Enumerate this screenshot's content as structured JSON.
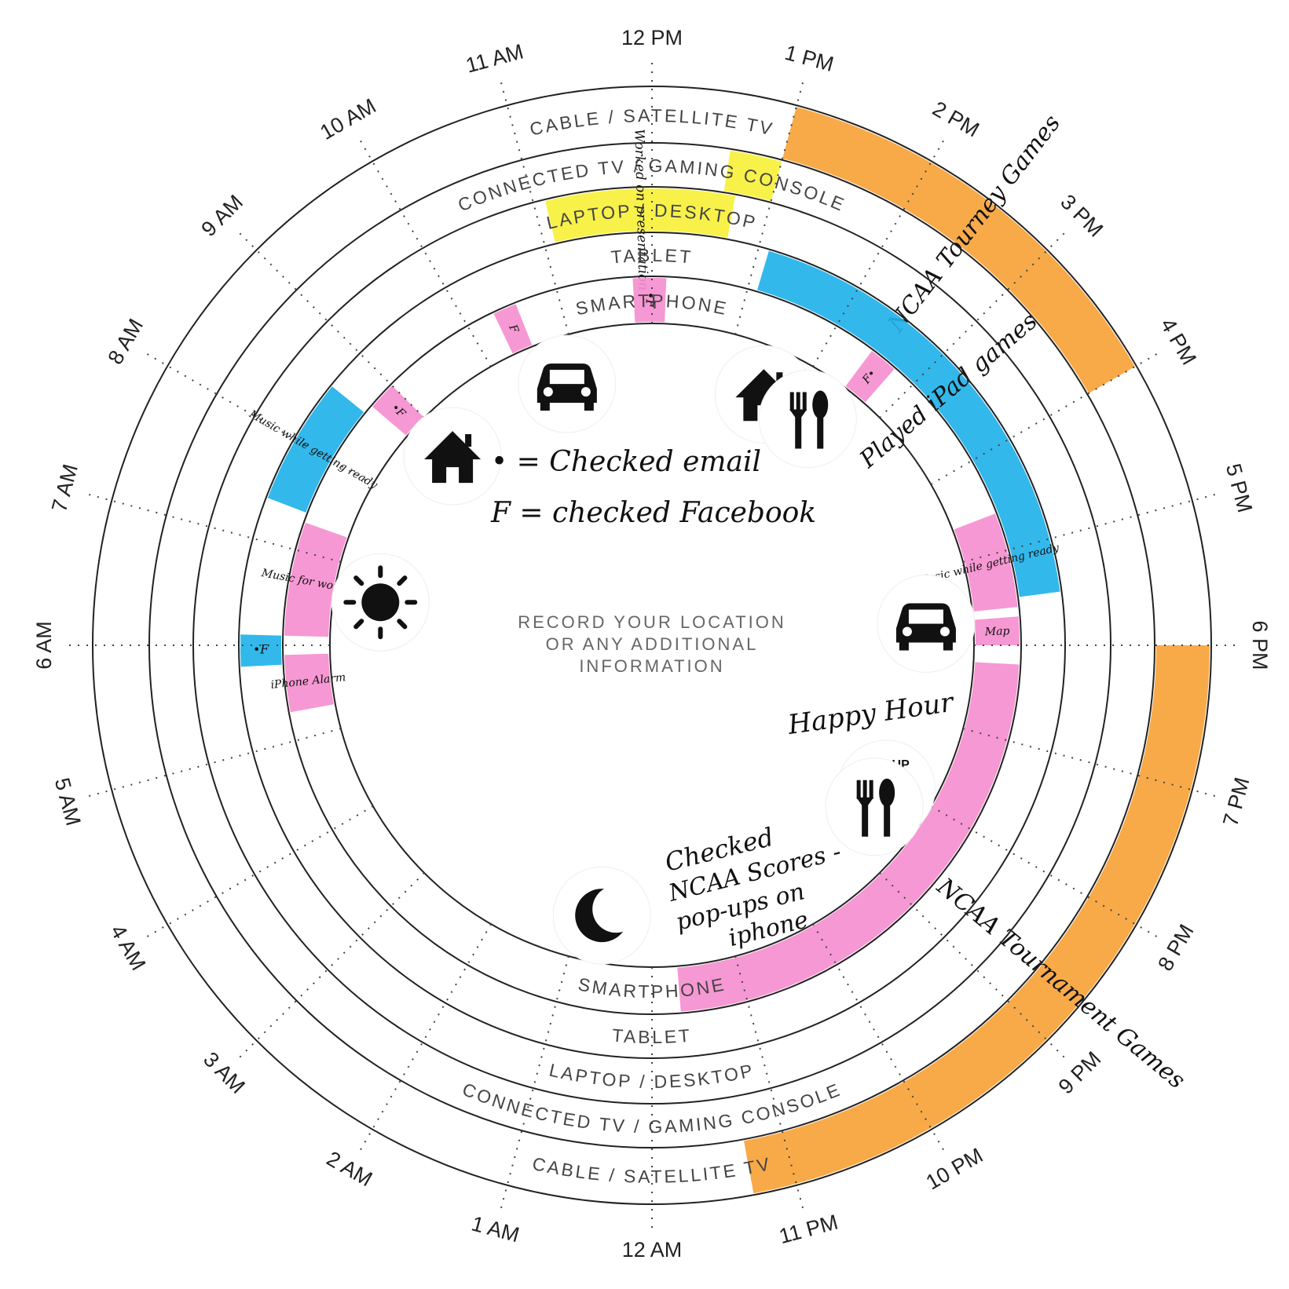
{
  "colors": {
    "orange": "#f7a33a",
    "yellow": "#f6f03b",
    "blue": "#22b2ea",
    "pink": "#f58fcf",
    "ink": "#111111"
  },
  "hour_labels": [
    "12 AM",
    "1 AM",
    "2 AM",
    "3 AM",
    "4 AM",
    "5 AM",
    "6 AM",
    "7 AM",
    "8 AM",
    "9 AM",
    "10 AM",
    "11 AM",
    "12 PM",
    "1 PM",
    "2 PM",
    "3 PM",
    "4 PM",
    "5 PM",
    "6 PM",
    "7 PM",
    "8 PM",
    "9 PM",
    "10 PM",
    "11 PM"
  ],
  "rings": [
    {
      "id": "cable",
      "label": "CABLE / SATELLITE TV"
    },
    {
      "id": "connected",
      "label": "CONNECTED TV / GAMING CONSOLE"
    },
    {
      "id": "laptop",
      "label": "LAPTOP / DESKTOP"
    },
    {
      "id": "tablet",
      "label": "TABLET"
    },
    {
      "id": "smartphone",
      "label": "SMARTPHONE"
    }
  ],
  "center": {
    "line1": "RECORD YOUR LOCATION",
    "line2": "OR ANY ADDITIONAL",
    "line3": "INFORMATION"
  },
  "legend": {
    "email": "• = Checked email",
    "facebook": "F = checked Facebook"
  },
  "activities": [
    {
      "ring": "cable",
      "start": 13.0,
      "end": 16.0,
      "color": "orange",
      "label": "NCAA Tourney Games"
    },
    {
      "ring": "cable",
      "start": 18.0,
      "end": 23.3,
      "color": "orange",
      "label": "NCAA Tournament Games"
    },
    {
      "ring": "connected",
      "start": 12.6,
      "end": 13.0,
      "color": "yellow",
      "label": ""
    },
    {
      "ring": "laptop",
      "start": 11.1,
      "end": 12.7,
      "color": "yellow",
      "label": "Worked on presentation"
    },
    {
      "ring": "tablet",
      "start": 13.1,
      "end": 17.5,
      "color": "blue",
      "label": "Played iPad games"
    },
    {
      "ring": "tablet",
      "start": 7.4,
      "end": 8.6,
      "color": "blue",
      "label": "Music while getting ready"
    },
    {
      "ring": "tablet",
      "start": 5.8,
      "end": 6.1,
      "color": "blue",
      "label": "•F"
    },
    {
      "ring": "smartphone",
      "start": 16.6,
      "end": 17.6,
      "color": "pink",
      "label": "Music while getting ready"
    },
    {
      "ring": "smartphone",
      "start": 17.7,
      "end": 18.0,
      "color": "pink",
      "label": "Map"
    },
    {
      "ring": "smartphone",
      "start": 18.2,
      "end": 23.7,
      "color": "pink",
      "label": ""
    },
    {
      "ring": "smartphone",
      "start": 6.1,
      "end": 7.3,
      "color": "pink",
      "label": "Music for workout"
    },
    {
      "ring": "smartphone",
      "start": 5.3,
      "end": 5.9,
      "color": "pink",
      "label": "iPhone Alarm"
    },
    {
      "ring": "smartphone",
      "start": 8.7,
      "end": 9.0,
      "color": "pink",
      "label": "•F"
    },
    {
      "ring": "smartphone",
      "start": 10.3,
      "end": 10.55,
      "color": "pink",
      "label": "F"
    },
    {
      "ring": "smartphone",
      "start": 11.8,
      "end": 12.15,
      "color": "pink",
      "label": "•F"
    },
    {
      "ring": "smartphone",
      "start": 14.45,
      "end": 14.75,
      "color": "pink",
      "label": "F•"
    }
  ],
  "icons": [
    {
      "name": "house-icon",
      "hour": 8.9
    },
    {
      "name": "car-icon",
      "hour": 10.8
    },
    {
      "name": "house-icon",
      "hour": 13.6
    },
    {
      "name": "fork-spoon-icon",
      "hour": 14.3
    },
    {
      "name": "car-icon",
      "hour": 17.7
    },
    {
      "name": "group-icon",
      "hour": 20.1
    },
    {
      "name": "fork-spoon-icon",
      "hour": 20.4
    },
    {
      "name": "moon-icon",
      "hour": 0.7
    },
    {
      "name": "sun-icon",
      "hour": 6.6
    }
  ],
  "group_label": "GROUP",
  "notes": {
    "happy_hour": "Happy Hour",
    "checked_ncaa_1": "Checked",
    "checked_ncaa_2": "NCAA Scores -",
    "checked_ncaa_3": "pop-ups on",
    "checked_ncaa_4": "iphone"
  }
}
